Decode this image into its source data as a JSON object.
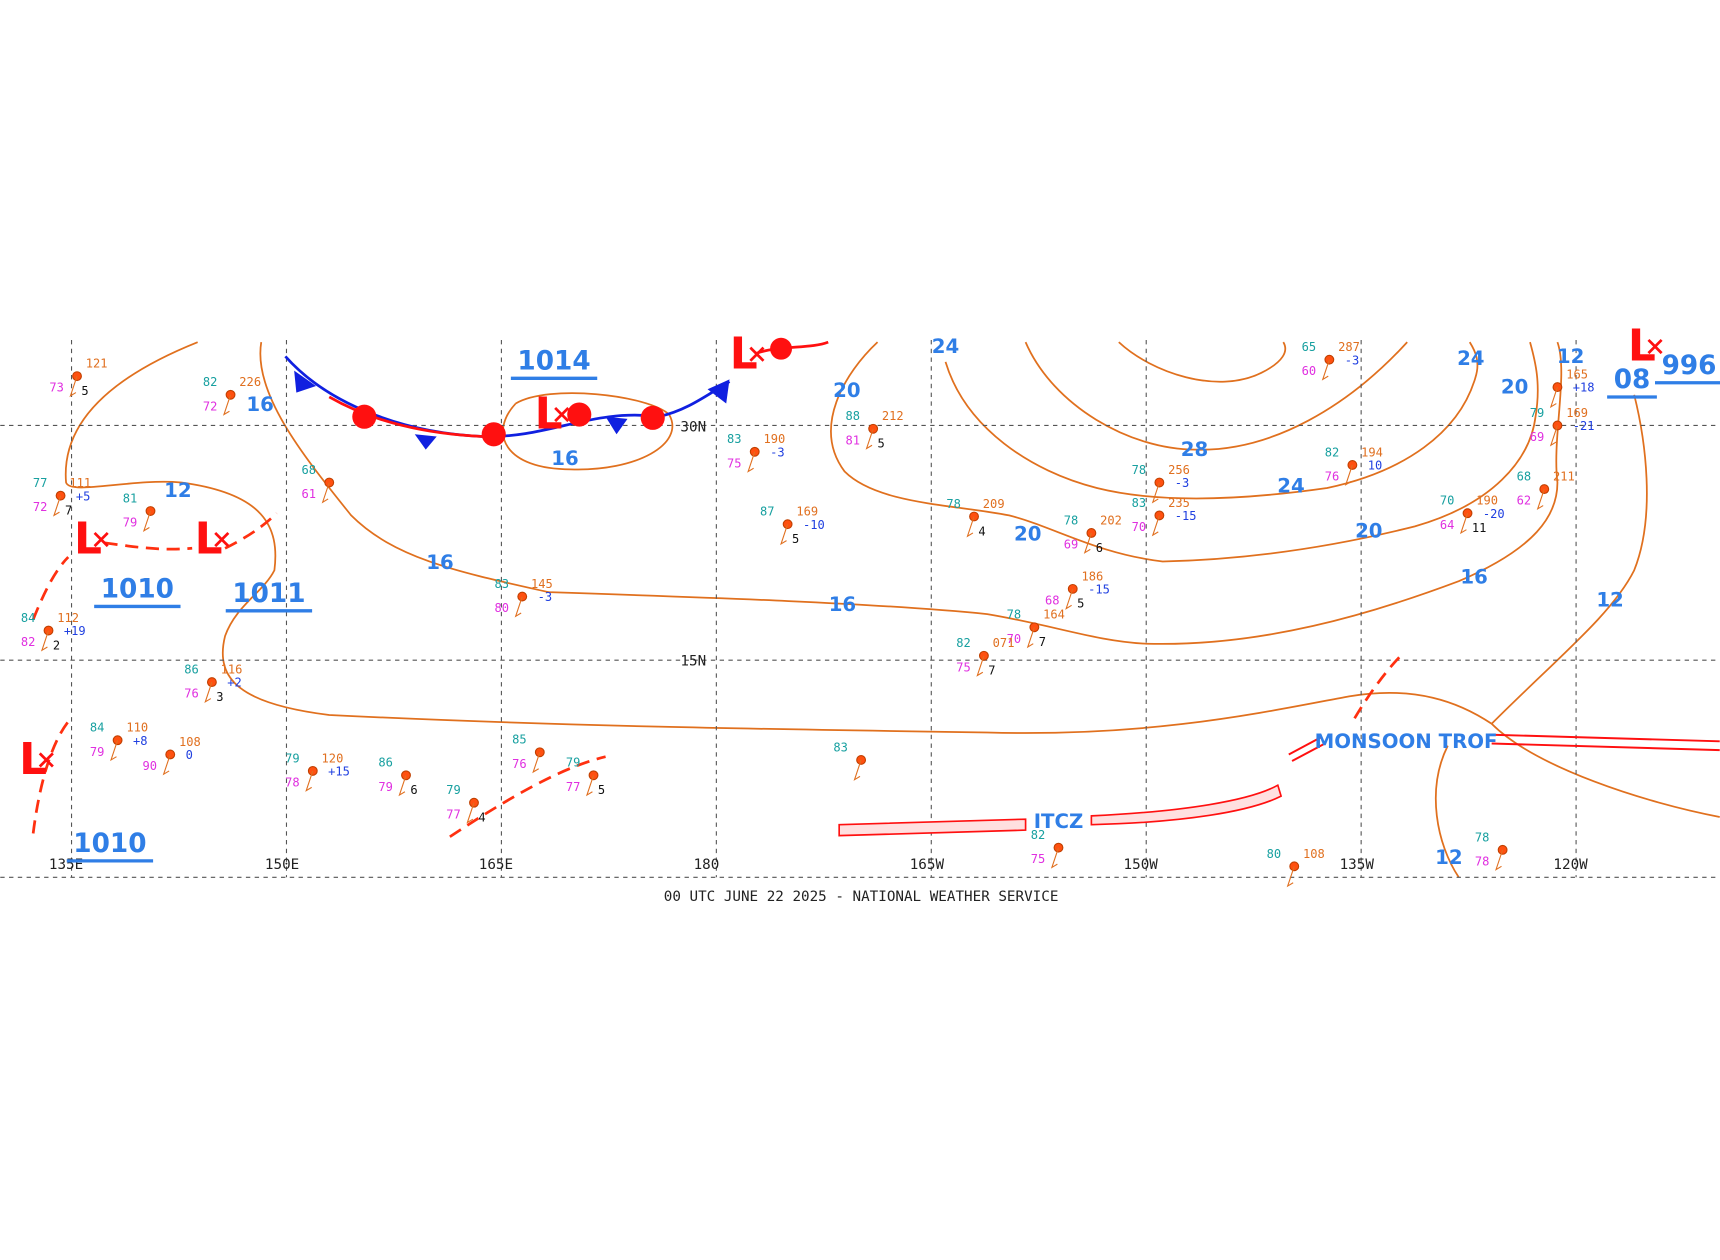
{
  "footer": "00 UTC JUNE 22 2025 - NATIONAL WEATHER SERVICE",
  "longitudes": [
    "135E",
    "150E",
    "165E",
    "180",
    "165W",
    "150W",
    "135W",
    "120W"
  ],
  "latitudes": [
    "30N",
    "15N"
  ],
  "pressure_centers": [
    "1014",
    "1010",
    "1011",
    "1010",
    "996",
    "08"
  ],
  "isobar_labels": [
    "16",
    "12",
    "16",
    "24",
    "20",
    "28",
    "24",
    "20",
    "12",
    "24",
    "20",
    "16",
    "12",
    "20",
    "16",
    "16",
    "12"
  ],
  "lows": [
    "L",
    "L",
    "L",
    "L",
    "L",
    "L"
  ],
  "features": [
    "ITCZ",
    "MONSOON TROF"
  ],
  "stations": [
    {
      "t": "82",
      "p": "226",
      "d": "72"
    },
    {
      "p": "121",
      "d": "73",
      "b": "5"
    },
    {
      "t": "77",
      "p": "111",
      "d": "72",
      "ten": "+5",
      "b": "7"
    },
    {
      "t": "81",
      "d": "79"
    },
    {
      "t": "68",
      "d": "61"
    },
    {
      "t": "83",
      "p": "190",
      "d": "75",
      "ten": "-3"
    },
    {
      "t": "87",
      "p": "169",
      "ten": "-10",
      "b": "5"
    },
    {
      "t": "88",
      "p": "212",
      "d": "81",
      "b": "5"
    },
    {
      "t": "78",
      "p": "209",
      "b": "4"
    },
    {
      "t": "78",
      "p": "202",
      "d": "69",
      "b": "6"
    },
    {
      "t": "78",
      "p": "256",
      "ten": "-3"
    },
    {
      "t": "83",
      "p": "235",
      "d": "70",
      "ten": "-15"
    },
    {
      "t": "82",
      "p": "194",
      "d": "76",
      "ten": "10"
    },
    {
      "t": "70",
      "p": "190",
      "d": "64",
      "ten": "-20",
      "b": "11"
    },
    {
      "t": "79",
      "p": "169",
      "d": "69",
      "ten": "-21"
    },
    {
      "t": "68",
      "p": "211",
      "d": "62"
    },
    {
      "p": "186",
      "d": "68",
      "ten": "-15",
      "b": "5"
    },
    {
      "t": "78",
      "p": "164",
      "d": "70",
      "b": "7"
    },
    {
      "t": "82",
      "p": "071",
      "d": "75",
      "b": "7"
    },
    {
      "t": "84",
      "p": "112",
      "d": "82",
      "ten": "+19",
      "b": "2"
    },
    {
      "t": "86",
      "p": "116",
      "d": "76",
      "ten": "+2",
      "b": "3"
    },
    {
      "t": "84",
      "p": "110",
      "d": "79",
      "ten": "+8"
    },
    {
      "p": "108",
      "d": "90",
      "ten": "0"
    },
    {
      "t": "79",
      "p": "120",
      "d": "78",
      "ten": "+15"
    },
    {
      "t": "83",
      "p": "145",
      "d": "80",
      "ten": "-3"
    },
    {
      "t": "65",
      "p": "287",
      "d": "60",
      "ten": "-3"
    },
    {
      "p": "165",
      "ten": "+18"
    },
    {
      "t": "86",
      "d": "79",
      "b": "6"
    },
    {
      "t": "79",
      "d": "77",
      "b": "4"
    },
    {
      "t": "79",
      "d": "77",
      "b": "5"
    },
    {
      "t": "85",
      "d": "76"
    },
    {
      "t": "83"
    },
    {
      "t": "82",
      "d": "75"
    },
    {
      "t": "78",
      "d": "78"
    },
    {
      "t": "80",
      "p": "108"
    }
  ]
}
